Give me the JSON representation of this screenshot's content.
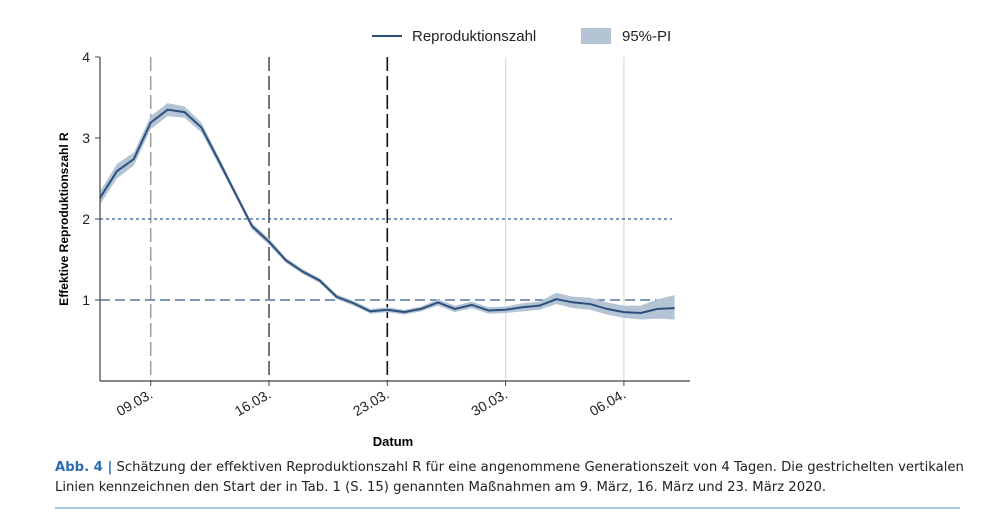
{
  "chart_data": {
    "type": "line",
    "xlabel": "Datum",
    "ylabel": "Effektive Reproduktionszahl R",
    "xlim": [
      "2020-03-06",
      "2020-04-09"
    ],
    "ylim": [
      0,
      4
    ],
    "yticks": [
      1,
      2,
      3,
      4
    ],
    "xticks": [
      {
        "date": "2020-03-09",
        "label": "09.03."
      },
      {
        "date": "2020-03-16",
        "label": "16.03."
      },
      {
        "date": "2020-03-23",
        "label": "23.03."
      },
      {
        "date": "2020-03-30",
        "label": "30.03."
      },
      {
        "date": "2020-04-06",
        "label": "06.04."
      }
    ],
    "legend": {
      "position": "top",
      "line_label": "Reproduktionszahl",
      "band_label": "95%-PI"
    },
    "colors": {
      "line": "#2c4f7c",
      "band": "#b4c4d4",
      "reference": "#2f5a94"
    },
    "reference_lines": [
      {
        "y": 2,
        "style": "dotted"
      },
      {
        "y": 1,
        "style": "dashed"
      }
    ],
    "vertical_markers": [
      {
        "date": "2020-03-09",
        "style": "dashed",
        "color": "#a0a0a0"
      },
      {
        "date": "2020-03-16",
        "style": "dashed",
        "color": "#555555"
      },
      {
        "date": "2020-03-23",
        "style": "dashed",
        "color": "#111111"
      },
      {
        "date": "2020-03-30",
        "style": "solid",
        "color": "#dddddd"
      },
      {
        "date": "2020-04-06",
        "style": "solid",
        "color": "#dddddd"
      }
    ],
    "start_date": "2020-03-06",
    "series": [
      {
        "values": [
          2.26,
          2.59,
          2.74,
          3.19,
          3.35,
          3.32,
          3.13,
          2.73,
          2.32,
          1.91,
          1.72,
          1.49,
          1.35,
          1.24,
          1.04,
          0.96,
          0.86,
          0.88,
          0.85,
          0.89,
          0.97,
          0.89,
          0.94,
          0.87,
          0.88,
          0.91,
          0.93,
          1.01,
          0.97,
          0.95,
          0.89,
          0.85,
          0.84,
          0.89,
          0.9
        ],
        "lower": [
          2.18,
          2.5,
          2.66,
          3.11,
          3.27,
          3.25,
          3.07,
          2.68,
          2.28,
          1.87,
          1.68,
          1.46,
          1.32,
          1.21,
          1.01,
          0.93,
          0.83,
          0.85,
          0.82,
          0.86,
          0.93,
          0.85,
          0.9,
          0.83,
          0.84,
          0.86,
          0.88,
          0.95,
          0.9,
          0.88,
          0.82,
          0.78,
          0.76,
          0.77,
          0.76
        ],
        "upper": [
          2.34,
          2.68,
          2.82,
          3.27,
          3.43,
          3.39,
          3.19,
          2.78,
          2.36,
          1.95,
          1.76,
          1.52,
          1.38,
          1.27,
          1.07,
          0.99,
          0.89,
          0.91,
          0.88,
          0.92,
          1.01,
          0.93,
          0.98,
          0.91,
          0.92,
          0.96,
          0.98,
          1.09,
          1.04,
          1.03,
          0.97,
          0.93,
          0.93,
          1.01,
          1.06
        ]
      }
    ]
  },
  "caption": {
    "label": "Abb. 4 |",
    "text": " Schätzung der effektiven Reproduktionszahl R für eine angenommene Generationszeit von 4 Tagen. Die gestrichelten vertikalen Linien kennzeichnen den Start der in Tab. 1 (S. 15) genannten Maßnahmen am 9. März, 16. März und 23. März 2020."
  }
}
